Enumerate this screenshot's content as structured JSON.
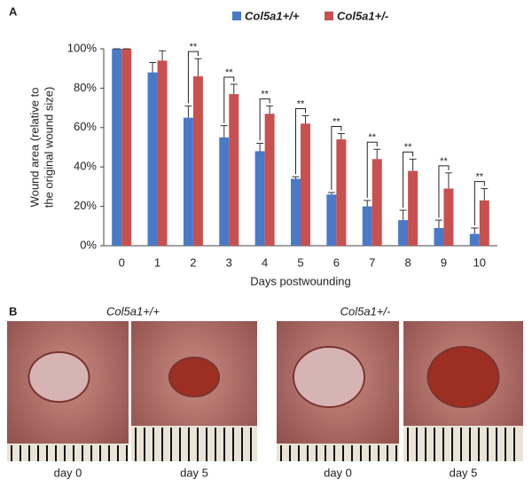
{
  "chart_data": {
    "type": "bar",
    "categories": [
      "0",
      "1",
      "2",
      "3",
      "4",
      "5",
      "6",
      "7",
      "8",
      "9",
      "10"
    ],
    "x_label": "Days postwounding",
    "y_label": [
      "Wound area (relative to",
      "the original wound size)"
    ],
    "series": [
      {
        "name": "Col5a1+/+",
        "color": "#4a7ac7",
        "values": [
          100,
          88,
          65,
          55,
          48,
          34,
          26,
          20,
          13,
          9,
          6
        ],
        "errors": [
          0,
          5,
          6,
          6,
          4,
          1,
          1,
          3,
          5,
          4,
          3
        ]
      },
      {
        "name": "Col5a1+/-",
        "color": "#c8504f",
        "values": [
          100,
          94,
          86,
          77,
          67,
          62,
          54,
          44,
          38,
          29,
          23
        ],
        "errors": [
          0,
          5,
          9,
          5,
          4,
          4,
          3,
          5,
          6,
          8,
          6
        ]
      }
    ],
    "ylim": [
      0,
      100
    ],
    "yticks": [
      {
        "value": 0,
        "label": "0%"
      },
      {
        "value": 20,
        "label": "20%"
      },
      {
        "value": 40,
        "label": "40%"
      },
      {
        "value": 60,
        "label": "60%"
      },
      {
        "value": 80,
        "label": "80%"
      },
      {
        "value": 100,
        "label": "100%"
      }
    ],
    "annotations": [
      {
        "text": "**",
        "x": "2"
      },
      {
        "text": "**",
        "x": "3"
      },
      {
        "text": "**",
        "x": "4"
      },
      {
        "text": "**",
        "x": "5"
      },
      {
        "text": "**",
        "x": "6"
      },
      {
        "text": "**",
        "x": "7"
      },
      {
        "text": "**",
        "x": "8"
      },
      {
        "text": "**",
        "x": "9"
      },
      {
        "text": "**",
        "x": "10"
      }
    ],
    "legend": "top"
  },
  "panel_a": "A",
  "panel_b": {
    "label": "B",
    "groups": [
      {
        "title": "Col5a1+/+",
        "captions": [
          "day 0",
          "day 5"
        ]
      },
      {
        "title": "Col5a1+/-",
        "captions": [
          "day 0",
          "day 5"
        ]
      }
    ]
  }
}
